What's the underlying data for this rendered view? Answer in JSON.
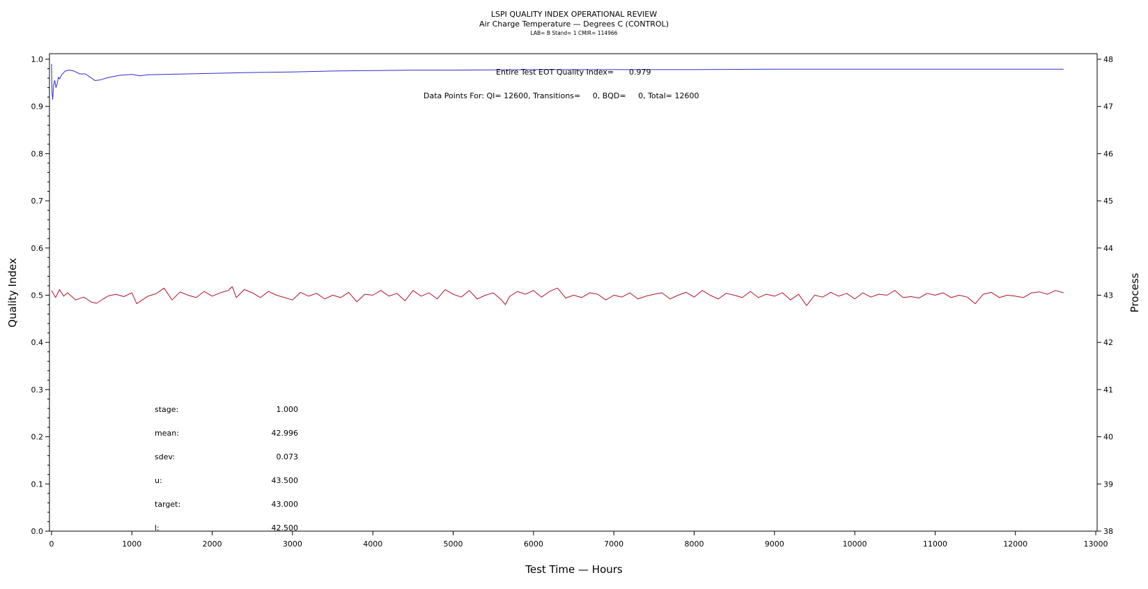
{
  "header": {
    "title": "LSPI QUALITY INDEX OPERATIONAL REVIEW",
    "subtitle": "Air Charge Temperature — Degrees C (CONTROL)",
    "lab_line": "LAB= B Stand= 1 CMIR= 114966"
  },
  "annotations": {
    "eot_label": "Entire Test EOT Quality Index=",
    "eot_value": "0.979",
    "data_points": "Data Points For: QI= 12600, Transitions=     0, BQD=     0, Total= 12600"
  },
  "stats": [
    {
      "label": "stage:",
      "value": "1.000"
    },
    {
      "label": "mean:",
      "value": "42.996"
    },
    {
      "label": "sdev:",
      "value": "0.073"
    },
    {
      "label": "u:",
      "value": "43.500"
    },
    {
      "label": "target:",
      "value": "43.000"
    },
    {
      "label": "l:",
      "value": "42.500"
    }
  ],
  "colors": {
    "quality_index_line": "#2b2bd0",
    "process_line": "#b0102a"
  },
  "chart_data": {
    "type": "line",
    "xlabel": "Test Time — Hours",
    "ylabel": "Quality Index",
    "y2label": "Process",
    "xlim": [
      0,
      13000
    ],
    "ylim": [
      0.0,
      1.0
    ],
    "y2lim": [
      38,
      48
    ],
    "x_ticks": [
      "0",
      "1000",
      "2000",
      "3000",
      "4000",
      "5000",
      "6000",
      "7000",
      "8000",
      "9000",
      "10000",
      "11000",
      "12000",
      "13000"
    ],
    "y_ticks": [
      "0.0",
      "0.1",
      "0.2",
      "0.3",
      "0.4",
      "0.5",
      "0.6",
      "0.7",
      "0.8",
      "0.9",
      "1.0"
    ],
    "y2_ticks": [
      "38",
      "39",
      "40",
      "41",
      "42",
      "43",
      "44",
      "45",
      "46",
      "47",
      "48"
    ],
    "grid": false,
    "series": [
      {
        "axis": "left",
        "x": [
          0,
          5,
          15,
          25,
          40,
          55,
          70,
          85,
          100,
          130,
          170,
          220,
          280,
          350,
          420,
          480,
          540,
          600,
          700,
          850,
          1000,
          1100,
          1200,
          1400,
          1700,
          2000,
          2500,
          3000,
          3500,
          4000,
          4500,
          5000,
          6000,
          7000,
          8000,
          9000,
          10000,
          10500,
          11000,
          11500,
          12000,
          12600
        ],
        "y": [
          0.99,
          0.93,
          0.915,
          0.945,
          0.955,
          0.94,
          0.948,
          0.962,
          0.958,
          0.968,
          0.975,
          0.977,
          0.975,
          0.969,
          0.969,
          0.962,
          0.955,
          0.956,
          0.961,
          0.966,
          0.968,
          0.965,
          0.967,
          0.968,
          0.969,
          0.97,
          0.972,
          0.973,
          0.975,
          0.976,
          0.977,
          0.977,
          0.978,
          0.978,
          0.978,
          0.979,
          0.979,
          0.979,
          0.979,
          0.979,
          0.979,
          0.979
        ]
      },
      {
        "axis": "right",
        "x": [
          0,
          50,
          100,
          150,
          200,
          300,
          400,
          500,
          560,
          700,
          800,
          900,
          1000,
          1060,
          1200,
          1300,
          1400,
          1500,
          1600,
          1700,
          1800,
          1900,
          2000,
          2100,
          2200,
          2250,
          2300,
          2400,
          2500,
          2600,
          2700,
          2800,
          2900,
          3000,
          3100,
          3200,
          3300,
          3400,
          3500,
          3600,
          3700,
          3800,
          3900,
          4000,
          4100,
          4200,
          4300,
          4400,
          4500,
          4600,
          4700,
          4800,
          4900,
          5000,
          5100,
          5200,
          5300,
          5400,
          5500,
          5600,
          5650,
          5700,
          5800,
          5900,
          6000,
          6100,
          6200,
          6300,
          6400,
          6500,
          6600,
          6700,
          6800,
          6900,
          7000,
          7100,
          7200,
          7300,
          7400,
          7500,
          7600,
          7700,
          7800,
          7900,
          8000,
          8100,
          8200,
          8300,
          8400,
          8500,
          8600,
          8700,
          8800,
          8900,
          9000,
          9100,
          9200,
          9300,
          9400,
          9500,
          9600,
          9700,
          9800,
          9900,
          10000,
          10100,
          10200,
          10300,
          10400,
          10500,
          10600,
          10700,
          10800,
          10900,
          11000,
          11100,
          11200,
          11300,
          11400,
          11500,
          11600,
          11700,
          11800,
          11900,
          12000,
          12100,
          12200,
          12300,
          12400,
          12500,
          12600
        ],
        "y": [
          43.1,
          42.95,
          43.12,
          42.98,
          43.05,
          42.9,
          42.96,
          42.85,
          42.83,
          42.98,
          43.02,
          42.97,
          43.05,
          42.82,
          42.98,
          43.03,
          43.15,
          42.9,
          43.07,
          43.0,
          42.95,
          43.08,
          42.98,
          43.05,
          43.1,
          43.18,
          42.95,
          43.12,
          43.05,
          42.95,
          43.08,
          43.0,
          42.95,
          42.9,
          43.06,
          42.98,
          43.04,
          42.92,
          43.0,
          42.95,
          43.06,
          42.86,
          43.02,
          43.0,
          43.1,
          42.98,
          43.04,
          42.88,
          43.1,
          42.98,
          43.05,
          42.92,
          43.12,
          43.02,
          42.96,
          43.1,
          42.92,
          43.0,
          43.05,
          42.9,
          42.8,
          42.97,
          43.08,
          43.02,
          43.1,
          42.96,
          43.08,
          43.15,
          42.94,
          43.0,
          42.95,
          43.05,
          43.02,
          42.9,
          43.0,
          42.96,
          43.05,
          42.92,
          42.98,
          43.02,
          43.05,
          42.92,
          43.0,
          43.06,
          42.96,
          43.1,
          43.0,
          42.92,
          43.04,
          43.0,
          42.95,
          43.08,
          42.95,
          43.02,
          42.98,
          43.05,
          42.9,
          43.02,
          42.78,
          43.0,
          42.96,
          43.06,
          42.98,
          43.04,
          42.92,
          43.05,
          42.96,
          43.02,
          43.0,
          43.1,
          42.95,
          42.97,
          42.94,
          43.04,
          43.0,
          43.05,
          42.95,
          43.0,
          42.96,
          42.82,
          43.02,
          43.06,
          42.95,
          43.0,
          42.98,
          42.95,
          43.05,
          43.07,
          43.02,
          43.1,
          43.05
        ]
      }
    ]
  }
}
